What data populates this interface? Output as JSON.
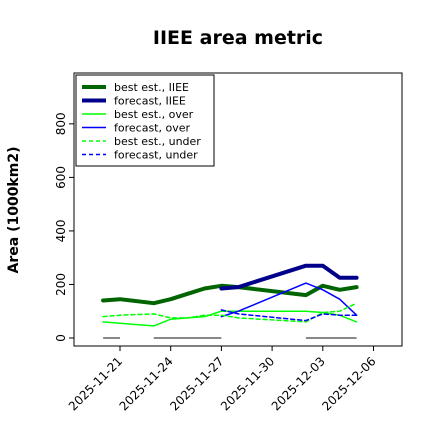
{
  "chart_data": {
    "type": "line",
    "title": "IIEE area metric",
    "xlabel": "",
    "ylabel": "Area (1000km2)",
    "x_ticks": [
      "2025-11-21",
      "2025-11-24",
      "2025-11-27",
      "2025-11-30",
      "2025-12-03",
      "2025-12-06"
    ],
    "x_tick_colors": [
      "#000000",
      "#000000",
      "#228B22",
      "#000000",
      "#000000",
      "#000000"
    ],
    "y_ticks": [
      0,
      200,
      400,
      600,
      800
    ],
    "ylim": [
      -30,
      990
    ],
    "grid": false,
    "legend_position": "top-left",
    "series": [
      {
        "name": "best est., IIEE",
        "color": "#006400",
        "width": 4,
        "dash": "",
        "x": [
          "2025-11-20",
          "2025-11-21",
          "2025-11-23",
          "2025-11-24",
          "2025-11-25",
          "2025-11-26",
          "2025-11-27",
          "2025-11-28",
          "2025-12-02",
          "2025-12-03",
          "2025-12-04",
          "2025-12-05"
        ],
        "y": [
          140,
          145,
          130,
          145,
          165,
          185,
          195,
          190,
          160,
          195,
          180,
          190
        ]
      },
      {
        "name": "forecast, IIEE",
        "color": "#00008B",
        "width": 4,
        "dash": "",
        "x": [
          "2025-11-27",
          "2025-11-28",
          "2025-12-02",
          "2025-12-03",
          "2025-12-04",
          "2025-12-05"
        ],
        "y": [
          185,
          190,
          270,
          270,
          225,
          225
        ]
      },
      {
        "name": "best est., over",
        "color": "#00FF00",
        "width": 1.5,
        "dash": "",
        "x": [
          "2025-11-20",
          "2025-11-21",
          "2025-11-23",
          "2025-11-24",
          "2025-11-25",
          "2025-11-26",
          "2025-11-27",
          "2025-11-28",
          "2025-12-02",
          "2025-12-03",
          "2025-12-04",
          "2025-12-05"
        ],
        "y": [
          60,
          55,
          45,
          70,
          75,
          80,
          100,
          100,
          100,
          95,
          85,
          60
        ]
      },
      {
        "name": "forecast, over",
        "color": "#0000FF",
        "width": 1.5,
        "dash": "",
        "x": [
          "2025-11-27",
          "2025-11-28",
          "2025-12-02",
          "2025-12-03",
          "2025-12-04",
          "2025-12-05"
        ],
        "y": [
          80,
          100,
          205,
          180,
          145,
          85
        ]
      },
      {
        "name": "best est., under",
        "color": "#00FF00",
        "width": 1.5,
        "dash": "4,3",
        "x": [
          "2025-11-20",
          "2025-11-21",
          "2025-11-23",
          "2025-11-24",
          "2025-11-25",
          "2025-11-26",
          "2025-11-27",
          "2025-11-28",
          "2025-12-02",
          "2025-12-03",
          "2025-12-04",
          "2025-12-05"
        ],
        "y": [
          80,
          85,
          90,
          75,
          75,
          85,
          85,
          75,
          60,
          95,
          100,
          130
        ]
      },
      {
        "name": "forecast, under",
        "color": "#0000FF",
        "width": 1.5,
        "dash": "4,3",
        "x": [
          "2025-11-27",
          "2025-11-28",
          "2025-12-02",
          "2025-12-03",
          "2025-12-04",
          "2025-12-05"
        ],
        "y": [
          105,
          90,
          65,
          90,
          85,
          85
        ]
      }
    ],
    "gray_segments": [
      {
        "x": [
          "2025-11-20",
          "2025-11-21"
        ],
        "y": [
          0,
          0
        ]
      },
      {
        "x": [
          "2025-11-23",
          "2025-11-27"
        ],
        "y": [
          0,
          0
        ]
      },
      {
        "x": [
          "2025-12-02",
          "2025-12-05"
        ],
        "y": [
          0,
          0
        ]
      }
    ]
  }
}
